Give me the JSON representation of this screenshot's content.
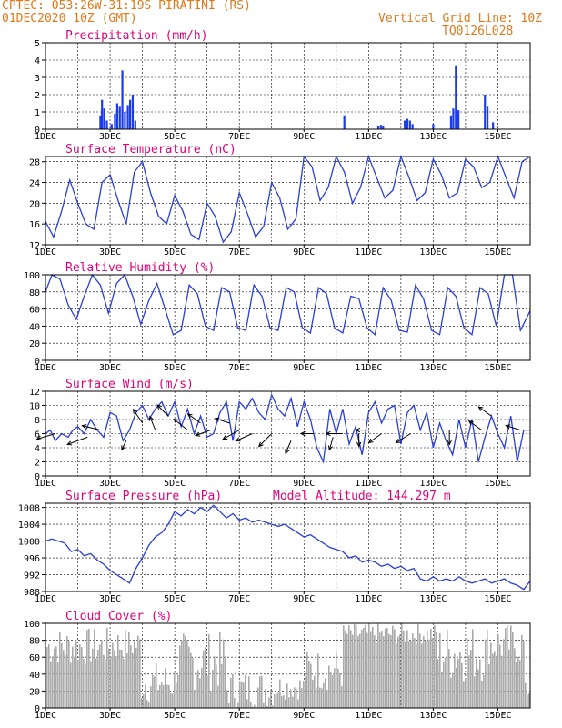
{
  "header": {
    "line1": "CPTEC:  053:26W-31:19S  PIRATINI (RS)",
    "line2": "01DEC2020 10Z (GMT)",
    "grid_note": "Vertical Grid Line: 10Z",
    "code": "TQ0126L028"
  },
  "colors": {
    "orange": "#e07818",
    "title": "#e0007a",
    "line": "#2a3fd8",
    "bar": "#1a3bef",
    "cloud": "#aaaaaa"
  },
  "chart_data": [
    {
      "id": "precip",
      "type": "bar",
      "title": "Precipitation (mm/h)",
      "ylim": [
        0,
        5
      ],
      "yticks": [
        0,
        1,
        2,
        3,
        4,
        5
      ],
      "x_unit": "day of December 2020 (10Z tick)",
      "xlim": [
        1,
        16
      ],
      "xticks": [
        "1DEC",
        "3DEC",
        "5DEC",
        "7DEC",
        "9DEC",
        "11DEC",
        "13DEC",
        "15DEC"
      ],
      "bars": [
        [
          2.7,
          0.8
        ],
        [
          2.75,
          1.7
        ],
        [
          2.82,
          1.2
        ],
        [
          2.9,
          0.5
        ],
        [
          3.05,
          0.3
        ],
        [
          3.15,
          0.9
        ],
        [
          3.22,
          1.5
        ],
        [
          3.3,
          1.3
        ],
        [
          3.38,
          3.4
        ],
        [
          3.46,
          1.0
        ],
        [
          3.55,
          1.4
        ],
        [
          3.62,
          1.7
        ],
        [
          3.7,
          2.0
        ],
        [
          3.78,
          0.5
        ],
        [
          10.25,
          0.8
        ],
        [
          11.3,
          0.2
        ],
        [
          11.38,
          0.25
        ],
        [
          11.45,
          0.2
        ],
        [
          12.12,
          0.5
        ],
        [
          12.2,
          0.6
        ],
        [
          12.28,
          0.5
        ],
        [
          12.36,
          0.3
        ],
        [
          13.0,
          0.3
        ],
        [
          13.55,
          0.8
        ],
        [
          13.62,
          1.2
        ],
        [
          13.7,
          3.7
        ],
        [
          13.78,
          1.1
        ],
        [
          14.6,
          2.0
        ],
        [
          14.68,
          1.3
        ],
        [
          14.85,
          0.4
        ]
      ]
    },
    {
      "id": "temp",
      "type": "line",
      "title": "Surface Temperature (nC)",
      "ylim": [
        12,
        29
      ],
      "yticks": [
        12,
        16,
        20,
        24,
        28
      ],
      "xlim": [
        1,
        16
      ],
      "xticks": [
        "1DEC",
        "3DEC",
        "5DEC",
        "7DEC",
        "9DEC",
        "11DEC",
        "13DEC",
        "15DEC"
      ],
      "x": [
        1.0,
        1.25,
        1.5,
        1.75,
        2.0,
        2.25,
        2.5,
        2.75,
        3.0,
        3.25,
        3.5,
        3.75,
        4.0,
        4.25,
        4.5,
        4.75,
        5.0,
        5.25,
        5.5,
        5.75,
        6.0,
        6.25,
        6.5,
        6.75,
        7.0,
        7.25,
        7.5,
        7.75,
        8.0,
        8.25,
        8.5,
        8.75,
        9.0,
        9.25,
        9.5,
        9.75,
        10.0,
        10.25,
        10.5,
        10.75,
        11.0,
        11.25,
        11.5,
        11.75,
        12.0,
        12.25,
        12.5,
        12.75,
        13.0,
        13.25,
        13.5,
        13.75,
        14.0,
        14.25,
        14.5,
        14.75,
        15.0,
        15.25,
        15.5,
        15.75,
        16.0
      ],
      "y": [
        16.5,
        13.5,
        18.5,
        24.5,
        20.0,
        16.0,
        15.0,
        24.0,
        25.5,
        20.5,
        16.0,
        26.0,
        28.0,
        22.0,
        17.5,
        16.0,
        21.5,
        18.5,
        14.0,
        13.0,
        20.0,
        17.5,
        12.5,
        14.5,
        22.0,
        18.0,
        13.5,
        15.5,
        24.0,
        21.0,
        15.0,
        17.0,
        29.0,
        27.0,
        20.5,
        23.0,
        29.0,
        26.0,
        20.0,
        23.0,
        29.0,
        25.0,
        21.0,
        22.5,
        29.0,
        25.0,
        20.5,
        22.0,
        28.5,
        25.5,
        21.0,
        22.0,
        28.5,
        27.0,
        23.0,
        24.0,
        29.0,
        25.0,
        21.0,
        28.0,
        29.0
      ]
    },
    {
      "id": "rh",
      "type": "line",
      "title": "Relative Humidity (%)",
      "ylim": [
        0,
        100
      ],
      "yticks": [
        0,
        20,
        40,
        60,
        80,
        100
      ],
      "xlim": [
        1,
        16
      ],
      "xticks": [
        "1DEC",
        "3DEC",
        "5DEC",
        "7DEC",
        "9DEC",
        "11DEC",
        "13DEC",
        "15DEC"
      ],
      "x": [
        1.0,
        1.2,
        1.45,
        1.7,
        1.95,
        2.2,
        2.45,
        2.7,
        2.95,
        3.2,
        3.45,
        3.7,
        3.95,
        4.2,
        4.45,
        4.7,
        4.95,
        5.2,
        5.45,
        5.7,
        5.95,
        6.2,
        6.45,
        6.7,
        6.95,
        7.2,
        7.45,
        7.7,
        7.95,
        8.2,
        8.45,
        8.7,
        8.95,
        9.2,
        9.45,
        9.7,
        9.95,
        10.2,
        10.45,
        10.7,
        10.95,
        11.2,
        11.45,
        11.7,
        11.95,
        12.2,
        12.45,
        12.7,
        12.95,
        13.2,
        13.45,
        13.7,
        13.95,
        14.2,
        14.45,
        14.7,
        14.95,
        15.2,
        15.45,
        15.7,
        16.0
      ],
      "y": [
        80,
        100,
        95,
        65,
        48,
        75,
        100,
        88,
        55,
        90,
        100,
        75,
        42,
        70,
        90,
        60,
        30,
        35,
        88,
        78,
        40,
        35,
        85,
        80,
        38,
        35,
        88,
        75,
        38,
        35,
        85,
        80,
        38,
        32,
        85,
        78,
        38,
        32,
        75,
        72,
        38,
        30,
        85,
        70,
        35,
        33,
        88,
        72,
        35,
        30,
        85,
        75,
        38,
        30,
        85,
        78,
        40,
        100,
        100,
        35,
        58
      ]
    },
    {
      "id": "wind",
      "type": "line",
      "title": "Surface Wind (m/s)",
      "ylim": [
        0,
        12
      ],
      "yticks": [
        0,
        2,
        4,
        6,
        8,
        10,
        12
      ],
      "xlim": [
        1,
        16
      ],
      "xticks": [
        "1DEC",
        "3DEC",
        "5DEC",
        "7DEC",
        "9DEC",
        "11DEC",
        "13DEC",
        "15DEC"
      ],
      "x": [
        1.0,
        1.15,
        1.3,
        1.5,
        1.7,
        1.85,
        2.0,
        2.2,
        2.4,
        2.6,
        2.8,
        3.0,
        3.2,
        3.4,
        3.6,
        3.8,
        4.0,
        4.2,
        4.4,
        4.6,
        4.8,
        5.0,
        5.2,
        5.4,
        5.6,
        5.8,
        6.0,
        6.2,
        6.4,
        6.6,
        6.8,
        7.0,
        7.2,
        7.4,
        7.6,
        7.8,
        8.0,
        8.2,
        8.4,
        8.6,
        8.8,
        9.0,
        9.2,
        9.4,
        9.6,
        9.8,
        10.0,
        10.2,
        10.4,
        10.6,
        10.8,
        11.0,
        11.2,
        11.4,
        11.6,
        11.8,
        12.0,
        12.2,
        12.4,
        12.6,
        12.8,
        13.0,
        13.2,
        13.4,
        13.6,
        13.8,
        14.0,
        14.2,
        14.4,
        14.6,
        14.8,
        15.0,
        15.2,
        15.4,
        15.6,
        15.8,
        16.0
      ],
      "y": [
        6.0,
        6.5,
        5.0,
        6.0,
        5.5,
        6.5,
        7.0,
        6.0,
        8.0,
        6.5,
        5.5,
        9.0,
        8.5,
        5.0,
        6.5,
        9.0,
        10.0,
        8.0,
        9.5,
        10.5,
        8.5,
        10.5,
        7.0,
        9.5,
        6.0,
        8.5,
        5.5,
        6.0,
        9.0,
        10.5,
        5.0,
        10.5,
        9.5,
        11.0,
        9.0,
        8.0,
        11.5,
        9.5,
        8.5,
        11.0,
        7.0,
        10.5,
        8.0,
        4.0,
        2.0,
        9.5,
        6.0,
        9.5,
        4.5,
        7.0,
        3.0,
        9.0,
        10.5,
        7.5,
        9.5,
        10.0,
        4.5,
        9.0,
        10.0,
        6.5,
        9.0,
        4.0,
        7.5,
        5.0,
        3.0,
        8.0,
        4.0,
        8.0,
        2.0,
        5.5,
        8.5,
        6.0,
        4.0,
        8.5,
        2.0,
        6.5,
        6.5
      ]
    },
    {
      "id": "pres",
      "type": "line",
      "title": "Surface Pressure (hPa)",
      "annotation": "Model Altitude: 144.297 m",
      "ylim": [
        988,
        1009
      ],
      "yticks": [
        988,
        992,
        996,
        1000,
        1004,
        1008
      ],
      "xlim": [
        1,
        16
      ],
      "xticks": [
        "1DEC",
        "3DEC",
        "5DEC",
        "7DEC",
        "9DEC",
        "11DEC",
        "13DEC",
        "15DEC"
      ],
      "x": [
        1.0,
        1.2,
        1.4,
        1.6,
        1.8,
        2.0,
        2.2,
        2.4,
        2.6,
        2.8,
        3.0,
        3.2,
        3.4,
        3.6,
        3.8,
        4.0,
        4.2,
        4.4,
        4.6,
        4.8,
        5.0,
        5.2,
        5.4,
        5.6,
        5.8,
        6.0,
        6.2,
        6.4,
        6.6,
        6.8,
        7.0,
        7.2,
        7.4,
        7.6,
        7.8,
        8.0,
        8.2,
        8.4,
        8.6,
        8.8,
        9.0,
        9.2,
        9.4,
        9.6,
        9.8,
        10.0,
        10.2,
        10.4,
        10.6,
        10.8,
        11.0,
        11.2,
        11.4,
        11.6,
        11.8,
        12.0,
        12.2,
        12.4,
        12.6,
        12.8,
        13.0,
        13.2,
        13.4,
        13.6,
        13.8,
        14.0,
        14.2,
        14.4,
        14.6,
        14.8,
        15.0,
        15.2,
        15.4,
        15.6,
        15.8,
        16.0
      ],
      "y": [
        1000.0,
        1000.5,
        1000.0,
        999.5,
        997.5,
        998.0,
        996.5,
        997.0,
        995.5,
        994.5,
        993.0,
        992.0,
        991.0,
        990.0,
        993.5,
        996.0,
        999.0,
        1001.0,
        1002.0,
        1004.0,
        1007.0,
        1006.0,
        1007.5,
        1006.5,
        1008.0,
        1007.0,
        1008.5,
        1007.0,
        1005.5,
        1006.5,
        1005.0,
        1005.5,
        1004.5,
        1005.0,
        1004.5,
        1004.0,
        1003.5,
        1004.0,
        1003.0,
        1002.0,
        1001.0,
        1001.5,
        1000.5,
        999.5,
        998.5,
        998.0,
        997.5,
        996.0,
        996.5,
        995.0,
        995.5,
        995.0,
        994.0,
        994.5,
        993.5,
        994.0,
        993.0,
        993.5,
        991.0,
        990.5,
        991.5,
        990.5,
        991.0,
        990.5,
        991.5,
        990.5,
        990.0,
        990.5,
        991.0,
        990.0,
        990.5,
        991.0,
        990.0,
        989.5,
        988.5,
        990.5
      ]
    },
    {
      "id": "cloud",
      "type": "area",
      "title": "Cloud Cover (%)",
      "ylim": [
        0,
        100
      ],
      "yticks": [
        0,
        20,
        40,
        60,
        80,
        100
      ],
      "xlim": [
        1,
        16
      ],
      "xticks": [
        "1DEC",
        "3DEC",
        "5DEC",
        "7DEC",
        "9DEC",
        "11DEC",
        "13DEC",
        "15DEC"
      ]
    }
  ]
}
